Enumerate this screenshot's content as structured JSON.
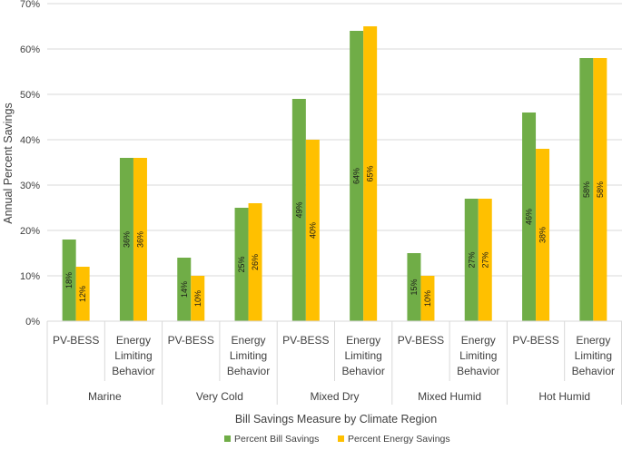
{
  "chart_data": {
    "type": "bar",
    "xlabel": "Bill Savings Measure by Climate Region",
    "ylabel": "Annual Percent Savings",
    "ylim": [
      0,
      70
    ],
    "yticks": [
      "0%",
      "10%",
      "20%",
      "30%",
      "40%",
      "50%",
      "60%",
      "70%"
    ],
    "grid": true,
    "legend_position": "bottom",
    "groups": [
      {
        "region": "Marine",
        "measures": [
          {
            "label_lines": [
              "PV-BESS"
            ],
            "values": [
              18,
              12
            ],
            "labels": [
              "18%",
              "12%"
            ]
          },
          {
            "label_lines": [
              "Energy",
              "Limiting",
              "Behavior"
            ],
            "values": [
              36,
              36
            ],
            "labels": [
              "36%",
              "36%"
            ]
          }
        ]
      },
      {
        "region": "Very Cold",
        "measures": [
          {
            "label_lines": [
              "PV-BESS"
            ],
            "values": [
              14,
              10
            ],
            "labels": [
              "14%",
              "10%"
            ]
          },
          {
            "label_lines": [
              "Energy",
              "Limiting",
              "Behavior"
            ],
            "values": [
              25,
              26
            ],
            "labels": [
              "25%",
              "26%"
            ]
          }
        ]
      },
      {
        "region": "Mixed Dry",
        "measures": [
          {
            "label_lines": [
              "PV-BESS"
            ],
            "values": [
              49,
              40
            ],
            "labels": [
              "49%",
              "40%"
            ]
          },
          {
            "label_lines": [
              "Energy",
              "Limiting",
              "Behavior"
            ],
            "values": [
              64,
              65
            ],
            "labels": [
              "64%",
              "65%"
            ]
          }
        ]
      },
      {
        "region": "Mixed Humid",
        "measures": [
          {
            "label_lines": [
              "PV-BESS"
            ],
            "values": [
              15,
              10
            ],
            "labels": [
              "15%",
              "10%"
            ]
          },
          {
            "label_lines": [
              "Energy",
              "Limiting",
              "Behavior"
            ],
            "values": [
              27,
              27
            ],
            "labels": [
              "27%",
              "27%"
            ]
          }
        ]
      },
      {
        "region": "Hot Humid",
        "measures": [
          {
            "label_lines": [
              "PV-BESS"
            ],
            "values": [
              46,
              38
            ],
            "labels": [
              "46%",
              "38%"
            ]
          },
          {
            "label_lines": [
              "Energy",
              "Limiting",
              "Behavior"
            ],
            "values": [
              58,
              58
            ],
            "labels": [
              "58%",
              "58%"
            ]
          }
        ]
      }
    ],
    "series": [
      {
        "name": "Percent Bill Savings",
        "color": "#70AD47"
      },
      {
        "name": "Percent Energy Savings",
        "color": "#FFC000"
      }
    ]
  }
}
